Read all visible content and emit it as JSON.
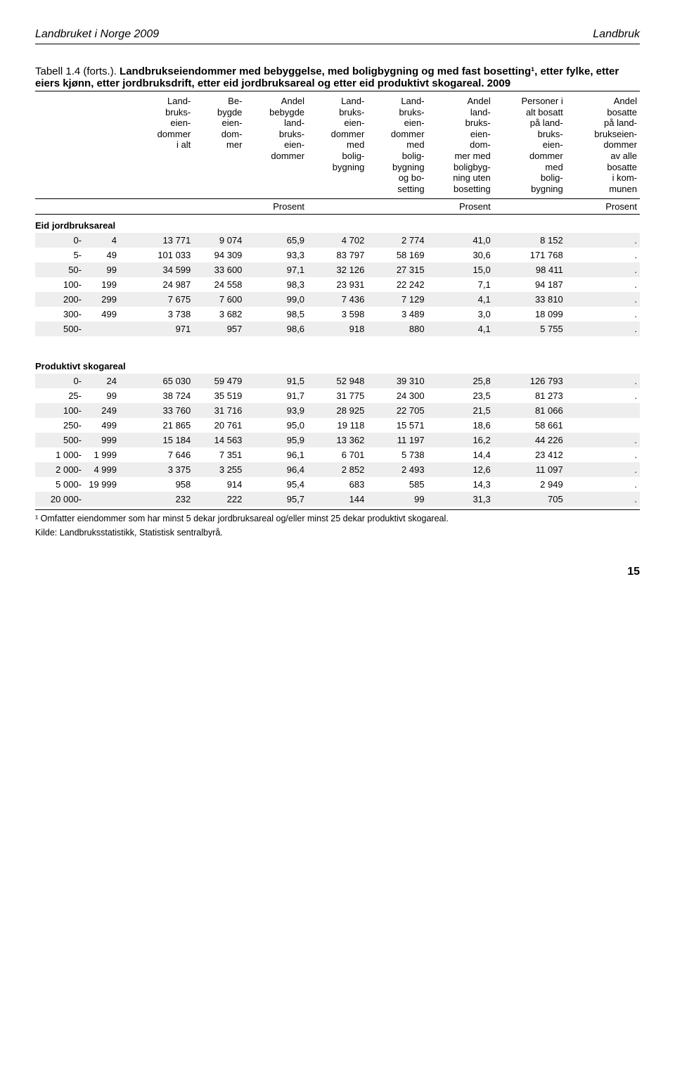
{
  "header": {
    "left": "Landbruket i Norge 2009",
    "right": "Landbruk"
  },
  "caption": {
    "num": "Tabell 1.4 (forts.). ",
    "text": "Landbrukseiendommer med bebyggelse, med boligbygning og med fast bosetting¹, etter fylke, etter eiers kjønn, etter jordbruksdrift, etter eid jordbruksareal og etter eid produktivt skogareal. 2009"
  },
  "columns": [
    "",
    "Land-\nbruks-\neien-\ndommer\ni alt",
    "Be-\nbygde\neien-\ndom-\nmer",
    "Andel\nbebygde\nland-\nbruks-\neien-\ndommer",
    "Land-\nbruks-\neien-\ndommer\nmed\nbolig-\nbygning",
    "Land-\nbruks-\neien-\ndommer\nmed\nbolig-\nbygning\nog bo-\nsetting",
    "Andel\nland-\nbruks-\neien-\ndom-\nmer med\nboligbyg-\nning uten\nbosetting",
    "Personer i\nalt bosatt\npå land-\nbruks-\neien-\ndommer\nmed\nbolig-\nbygning",
    "Andel\nbosatte\npå land-\nbrukseien-\ndommer\nav alle\nbosatte\ni kom-\nmunen"
  ],
  "unit_row": [
    "",
    "",
    "",
    "Prosent",
    "",
    "",
    "Prosent",
    "",
    "Prosent"
  ],
  "section1": {
    "title": "Eid jordbruksareal",
    "rows": [
      {
        "label_lo": "0-",
        "label_hi": "4",
        "cells": [
          "13 771",
          "9 074",
          "65,9",
          "4 702",
          "2 774",
          "41,0",
          "8 152",
          "."
        ]
      },
      {
        "label_lo": "5-",
        "label_hi": "49",
        "cells": [
          "101 033",
          "94 309",
          "93,3",
          "83 797",
          "58 169",
          "30,6",
          "171 768",
          "."
        ]
      },
      {
        "label_lo": "50-",
        "label_hi": "99",
        "cells": [
          "34 599",
          "33 600",
          "97,1",
          "32 126",
          "27 315",
          "15,0",
          "98 411",
          "."
        ]
      },
      {
        "label_lo": "100-",
        "label_hi": "199",
        "cells": [
          "24 987",
          "24 558",
          "98,3",
          "23 931",
          "22 242",
          "7,1",
          "94 187",
          "."
        ]
      },
      {
        "label_lo": "200-",
        "label_hi": "299",
        "cells": [
          "7 675",
          "7 600",
          "99,0",
          "7 436",
          "7 129",
          "4,1",
          "33 810",
          "."
        ]
      },
      {
        "label_lo": "300-",
        "label_hi": "499",
        "cells": [
          "3 738",
          "3 682",
          "98,5",
          "3 598",
          "3 489",
          "3,0",
          "18 099",
          "."
        ]
      },
      {
        "label_lo": "500-",
        "label_hi": "",
        "cells": [
          "971",
          "957",
          "98,6",
          "918",
          "880",
          "4,1",
          "5 755",
          "."
        ]
      }
    ]
  },
  "section2": {
    "title": "Produktivt skogareal",
    "rows": [
      {
        "label_lo": "0-",
        "label_hi": "24",
        "cells": [
          "65 030",
          "59 479",
          "91,5",
          "52 948",
          "39 310",
          "25,8",
          "126 793",
          "."
        ]
      },
      {
        "label_lo": "25-",
        "label_hi": "99",
        "cells": [
          "38 724",
          "35 519",
          "91,7",
          "31 775",
          "24 300",
          "23,5",
          "81 273",
          "."
        ]
      },
      {
        "label_lo": "100-",
        "label_hi": "249",
        "cells": [
          "33 760",
          "31 716",
          "93,9",
          "28 925",
          "22 705",
          "21,5",
          "81 066",
          ""
        ]
      },
      {
        "label_lo": "250-",
        "label_hi": "499",
        "cells": [
          "21 865",
          "20 761",
          "95,0",
          "19 118",
          "15 571",
          "18,6",
          "58 661",
          ""
        ]
      },
      {
        "label_lo": "500-",
        "label_hi": "999",
        "cells": [
          "15 184",
          "14 563",
          "95,9",
          "13 362",
          "11 197",
          "16,2",
          "44 226",
          "."
        ]
      },
      {
        "label_lo": "1 000-",
        "label_hi": "1 999",
        "cells": [
          "7 646",
          "7 351",
          "96,1",
          "6 701",
          "5 738",
          "14,4",
          "23 412",
          "."
        ]
      },
      {
        "label_lo": "2 000-",
        "label_hi": "4 999",
        "cells": [
          "3 375",
          "3 255",
          "96,4",
          "2 852",
          "2 493",
          "12,6",
          "11 097",
          "."
        ]
      },
      {
        "label_lo": "5 000-",
        "label_hi": "19 999",
        "cells": [
          "958",
          "914",
          "95,4",
          "683",
          "585",
          "14,3",
          "2 949",
          "."
        ]
      },
      {
        "label_lo": "20 000-",
        "label_hi": "",
        "cells": [
          "232",
          "222",
          "95,7",
          "144",
          "99",
          "31,3",
          "705",
          "."
        ]
      }
    ]
  },
  "footnote": "¹ Omfatter eiendommer som har minst 5 dekar jordbruksareal og/eller minst 25 dekar produktivt skogareal.",
  "source": "Kilde: Landbruksstatistikk, Statistisk sentralbyrå.",
  "page_num": "15",
  "label_col_width_lo": "60px",
  "label_col_width_hi": "50px"
}
